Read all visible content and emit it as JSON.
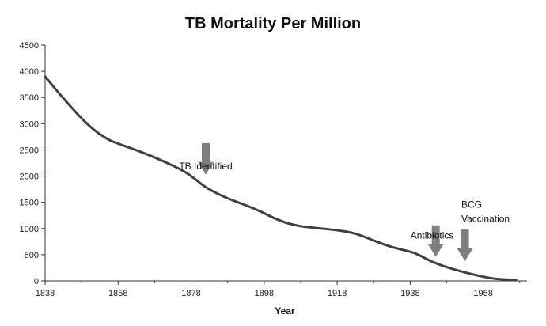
{
  "chart_data": {
    "type": "line",
    "title": "TB Mortality Per Million",
    "xlabel": "Year",
    "ylabel": "",
    "xlim": [
      1838,
      1970
    ],
    "ylim": [
      0,
      4500
    ],
    "x_ticks": [
      "1838",
      "1858",
      "1878",
      "1898",
      "1918",
      "1938",
      "1958"
    ],
    "y_ticks": [
      "0",
      "500",
      "1000",
      "1500",
      "2000",
      "2500",
      "3000",
      "3500",
      "4000",
      "4500"
    ],
    "grid": false,
    "legend": "none",
    "line_color": "#404040",
    "arrow_color": "#7f7f7f",
    "series": [
      {
        "x": [
          1838,
          1844,
          1850,
          1855,
          1858,
          1864,
          1870,
          1876,
          1879,
          1882,
          1887,
          1892,
          1897,
          1902,
          1907,
          1912,
          1918,
          1923,
          1928,
          1933,
          1938,
          1940,
          1944,
          1948,
          1952,
          1956,
          1960,
          1963,
          1967
        ],
        "y": [
          3900,
          3400,
          2950,
          2700,
          2620,
          2470,
          2300,
          2100,
          1950,
          1780,
          1600,
          1470,
          1330,
          1150,
          1050,
          1010,
          970,
          910,
          770,
          640,
          560,
          510,
          360,
          260,
          180,
          110,
          50,
          30,
          20
        ]
      }
    ],
    "annotations": [
      {
        "text": "TB Identified",
        "x": 1882,
        "y": 2130,
        "arrow_x": 1882,
        "arrow_top": 2630,
        "arrow_bottom": 2030
      },
      {
        "text": "Antibiotics",
        "x": 1944,
        "y": 810,
        "arrow_x": 1945,
        "arrow_top": 1060,
        "arrow_bottom": 460
      },
      {
        "text": "BCG",
        "x": 1952,
        "y": 1400,
        "arrow_x": 1953,
        "arrow_top": 980,
        "arrow_bottom": 380,
        "line2": "Vaccination"
      }
    ]
  }
}
